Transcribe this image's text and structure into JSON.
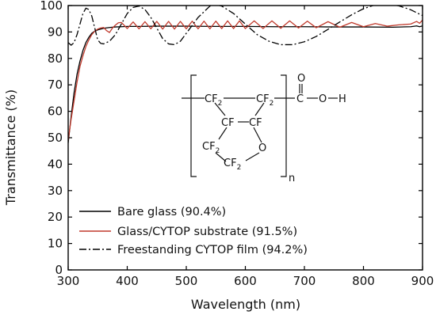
{
  "chart_data": {
    "type": "line",
    "xlabel": "Wavelength (nm)",
    "ylabel": "Transmittance (%)",
    "xlim": [
      300,
      900
    ],
    "ylim": [
      0,
      100
    ],
    "x_ticks": [
      300,
      400,
      500,
      600,
      700,
      800,
      900
    ],
    "y_ticks": [
      0,
      10,
      20,
      30,
      40,
      50,
      60,
      70,
      80,
      90,
      100
    ],
    "grid": false,
    "legend_position": "bottom-left",
    "series": [
      {
        "name": "Bare glass (90.4%)",
        "color": "#000000",
        "dash": "solid",
        "x": [
          300,
          305,
          310,
          315,
          320,
          325,
          330,
          335,
          340,
          345,
          350,
          355,
          360,
          370,
          380,
          390,
          400,
          420,
          450,
          500,
          550,
          600,
          650,
          700,
          750,
          800,
          850,
          880,
          890,
          895,
          900
        ],
        "y": [
          48,
          58,
          67,
          74,
          79,
          83,
          86,
          88,
          89.5,
          90.3,
          90.8,
          91.1,
          91.4,
          91.7,
          91.9,
          92.0,
          92.1,
          92.1,
          92.2,
          92.2,
          92.1,
          92.1,
          92.0,
          92.0,
          91.9,
          91.9,
          91.8,
          92.0,
          92.3,
          92.0,
          92.3
        ]
      },
      {
        "name": "Glass/CYTOP substrate (91.5%)",
        "color": "#c0392b",
        "dash": "solid",
        "x": [
          300,
          305,
          310,
          315,
          320,
          325,
          330,
          335,
          340,
          345,
          350,
          355,
          360,
          365,
          370,
          375,
          380,
          385,
          390,
          395,
          400,
          410,
          420,
          430,
          440,
          450,
          460,
          470,
          480,
          490,
          500,
          510,
          520,
          530,
          540,
          550,
          560,
          570,
          580,
          590,
          600,
          615,
          630,
          645,
          660,
          675,
          690,
          705,
          720,
          740,
          760,
          780,
          800,
          820,
          840,
          860,
          880,
          890,
          895,
          900
        ],
        "y": [
          49,
          57,
          64,
          71,
          77,
          81,
          84.5,
          87,
          89,
          90.3,
          91.1,
          91.5,
          91.7,
          90.5,
          89.8,
          91.5,
          92.6,
          93.5,
          93.6,
          92.5,
          91.3,
          93.8,
          91.2,
          93.9,
          91.2,
          94.0,
          91.1,
          94.0,
          91.1,
          94.0,
          91.2,
          94.1,
          91.2,
          94.1,
          91.2,
          94.1,
          91.3,
          94.2,
          91.3,
          94.2,
          91.3,
          94.2,
          91.3,
          94.2,
          91.4,
          94.2,
          91.5,
          94.1,
          91.6,
          93.9,
          91.8,
          93.6,
          92.0,
          93.2,
          92.2,
          92.7,
          93.0,
          94.0,
          93.3,
          94.5
        ]
      },
      {
        "name": "Freestanding CYTOP  film (94.2%)",
        "color": "#000000",
        "dash": "dashdot",
        "x": [
          300,
          305,
          310,
          315,
          320,
          325,
          330,
          335,
          340,
          345,
          350,
          355,
          360,
          370,
          380,
          390,
          400,
          410,
          420,
          430,
          440,
          450,
          460,
          470,
          480,
          490,
          500,
          520,
          540,
          550,
          560,
          580,
          600,
          620,
          640,
          660,
          680,
          700,
          720,
          740,
          760,
          780,
          800,
          820,
          840,
          860,
          880,
          900
        ],
        "y": [
          86,
          85,
          86,
          89,
          93,
          97,
          99,
          98.5,
          96,
          91.5,
          87,
          85.7,
          85.5,
          86.5,
          89,
          93,
          97,
          99.3,
          99.8,
          98.5,
          95.5,
          91.5,
          87.5,
          85.5,
          85.2,
          86.5,
          89.5,
          95.5,
          99.8,
          100.3,
          99.8,
          97,
          93,
          89,
          86.5,
          85.2,
          85.2,
          86.3,
          88.3,
          91,
          93.8,
          96.5,
          98.8,
          100.3,
          100.6,
          99.9,
          98.4,
          96.2
        ]
      }
    ]
  },
  "structure": {
    "cf2_top_left": "CF",
    "cf2_top_right": "CF",
    "cf_left": "CF",
    "cf_right": "CF",
    "cf2_ring_left": "CF",
    "cf2_ring_bottom": "CF",
    "ring_oxygen": "O",
    "carbonyl_oxygen": "O",
    "carbon": "C",
    "hydroxyl_oxygen": "O",
    "hydrogen": "H",
    "subscript_2": "2",
    "repeat_n": "n"
  }
}
